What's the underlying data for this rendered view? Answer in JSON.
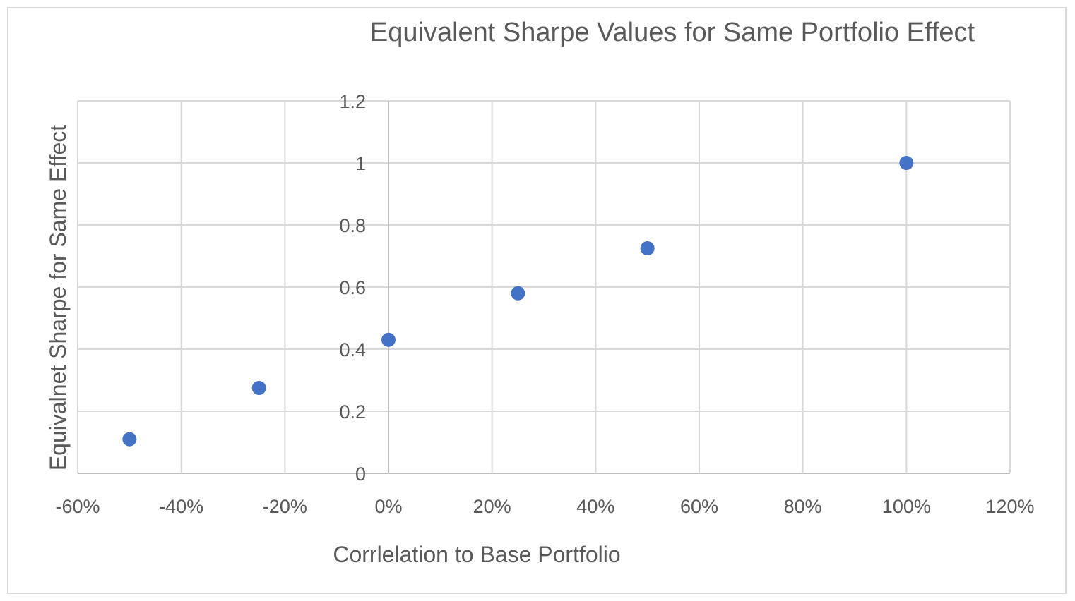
{
  "chart_data": {
    "type": "scatter",
    "title": "Equivalent Sharpe Values for Same Portfolio Effect",
    "xlabel": "Corrlelation to Base Portfolio",
    "ylabel": "Equivalnet Sharpe for Same Effect",
    "xlim": [
      -0.6,
      1.2
    ],
    "ylim": [
      0,
      1.2
    ],
    "x_ticks": [
      -0.6,
      -0.4,
      -0.2,
      0,
      0.2,
      0.4,
      0.6,
      0.8,
      1.0,
      1.2
    ],
    "x_tick_labels": [
      "-60%",
      "-40%",
      "-20%",
      "0%",
      "20%",
      "40%",
      "60%",
      "80%",
      "100%",
      "120%"
    ],
    "y_ticks": [
      0,
      0.2,
      0.4,
      0.6,
      0.8,
      1.0,
      1.2
    ],
    "y_tick_labels": [
      "0",
      "0.2",
      "0.4",
      "0.6",
      "0.8",
      "1",
      "1.2"
    ],
    "grid": true,
    "legend": "none",
    "color": "#4472c4",
    "series": [
      {
        "points": [
          {
            "x": -0.5,
            "y": 0.11
          },
          {
            "x": -0.25,
            "y": 0.275
          },
          {
            "x": 0,
            "y": 0.43
          },
          {
            "x": 0.25,
            "y": 0.58
          },
          {
            "x": 0.5,
            "y": 0.725
          },
          {
            "x": 1.0,
            "y": 1.0
          }
        ]
      }
    ]
  }
}
